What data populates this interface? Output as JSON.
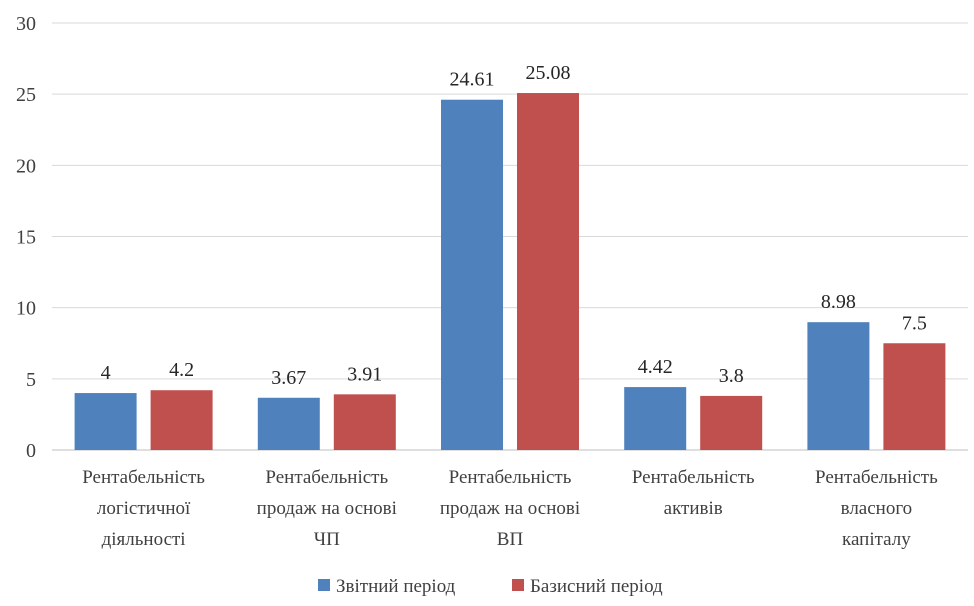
{
  "chart_data": {
    "type": "bar",
    "categories": [
      [
        "Рентабельність",
        "логістичної",
        "діяльності"
      ],
      [
        "Рентабельність",
        "продаж на основі",
        "ЧП"
      ],
      [
        "Рентабельність",
        "продаж на основі",
        "ВП"
      ],
      [
        "Рентабельність",
        "активів"
      ],
      [
        "Рентабельність",
        "власного",
        "капіталу"
      ]
    ],
    "series": [
      {
        "name": "Звітний період",
        "color": "#4f81bd",
        "values": [
          4,
          3.67,
          24.61,
          4.42,
          8.98
        ],
        "labels": [
          "4",
          "3.67",
          "24.61",
          "4.42",
          "8.98"
        ]
      },
      {
        "name": "Базисний період",
        "color": "#c0504d",
        "values": [
          4.2,
          3.91,
          25.08,
          3.8,
          7.5
        ],
        "labels": [
          "4.2",
          "3.91",
          "25.08",
          "3.8",
          "7.5"
        ]
      }
    ],
    "ylim": [
      0,
      30
    ],
    "yticks": [
      0,
      5,
      10,
      15,
      20,
      25,
      30
    ],
    "grid": true,
    "legend": "bottom"
  }
}
